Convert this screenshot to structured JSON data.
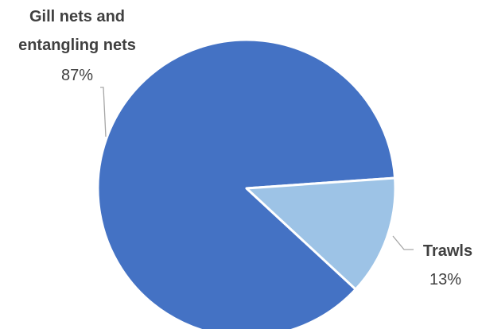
{
  "chart_data": {
    "type": "pie",
    "title": "",
    "slices": [
      {
        "label": "Gill nets and entangling nets",
        "label_lines": [
          "Gill nets and",
          "entangling nets"
        ],
        "value": 87,
        "display": "87%",
        "color": "#4472C4"
      },
      {
        "label": "Trawls",
        "label_lines": [
          "Trawls"
        ],
        "value": 13,
        "display": "13%",
        "color": "#9DC3E6"
      }
    ],
    "legend": "none",
    "data_labels": "outside-with-leader-lines"
  }
}
